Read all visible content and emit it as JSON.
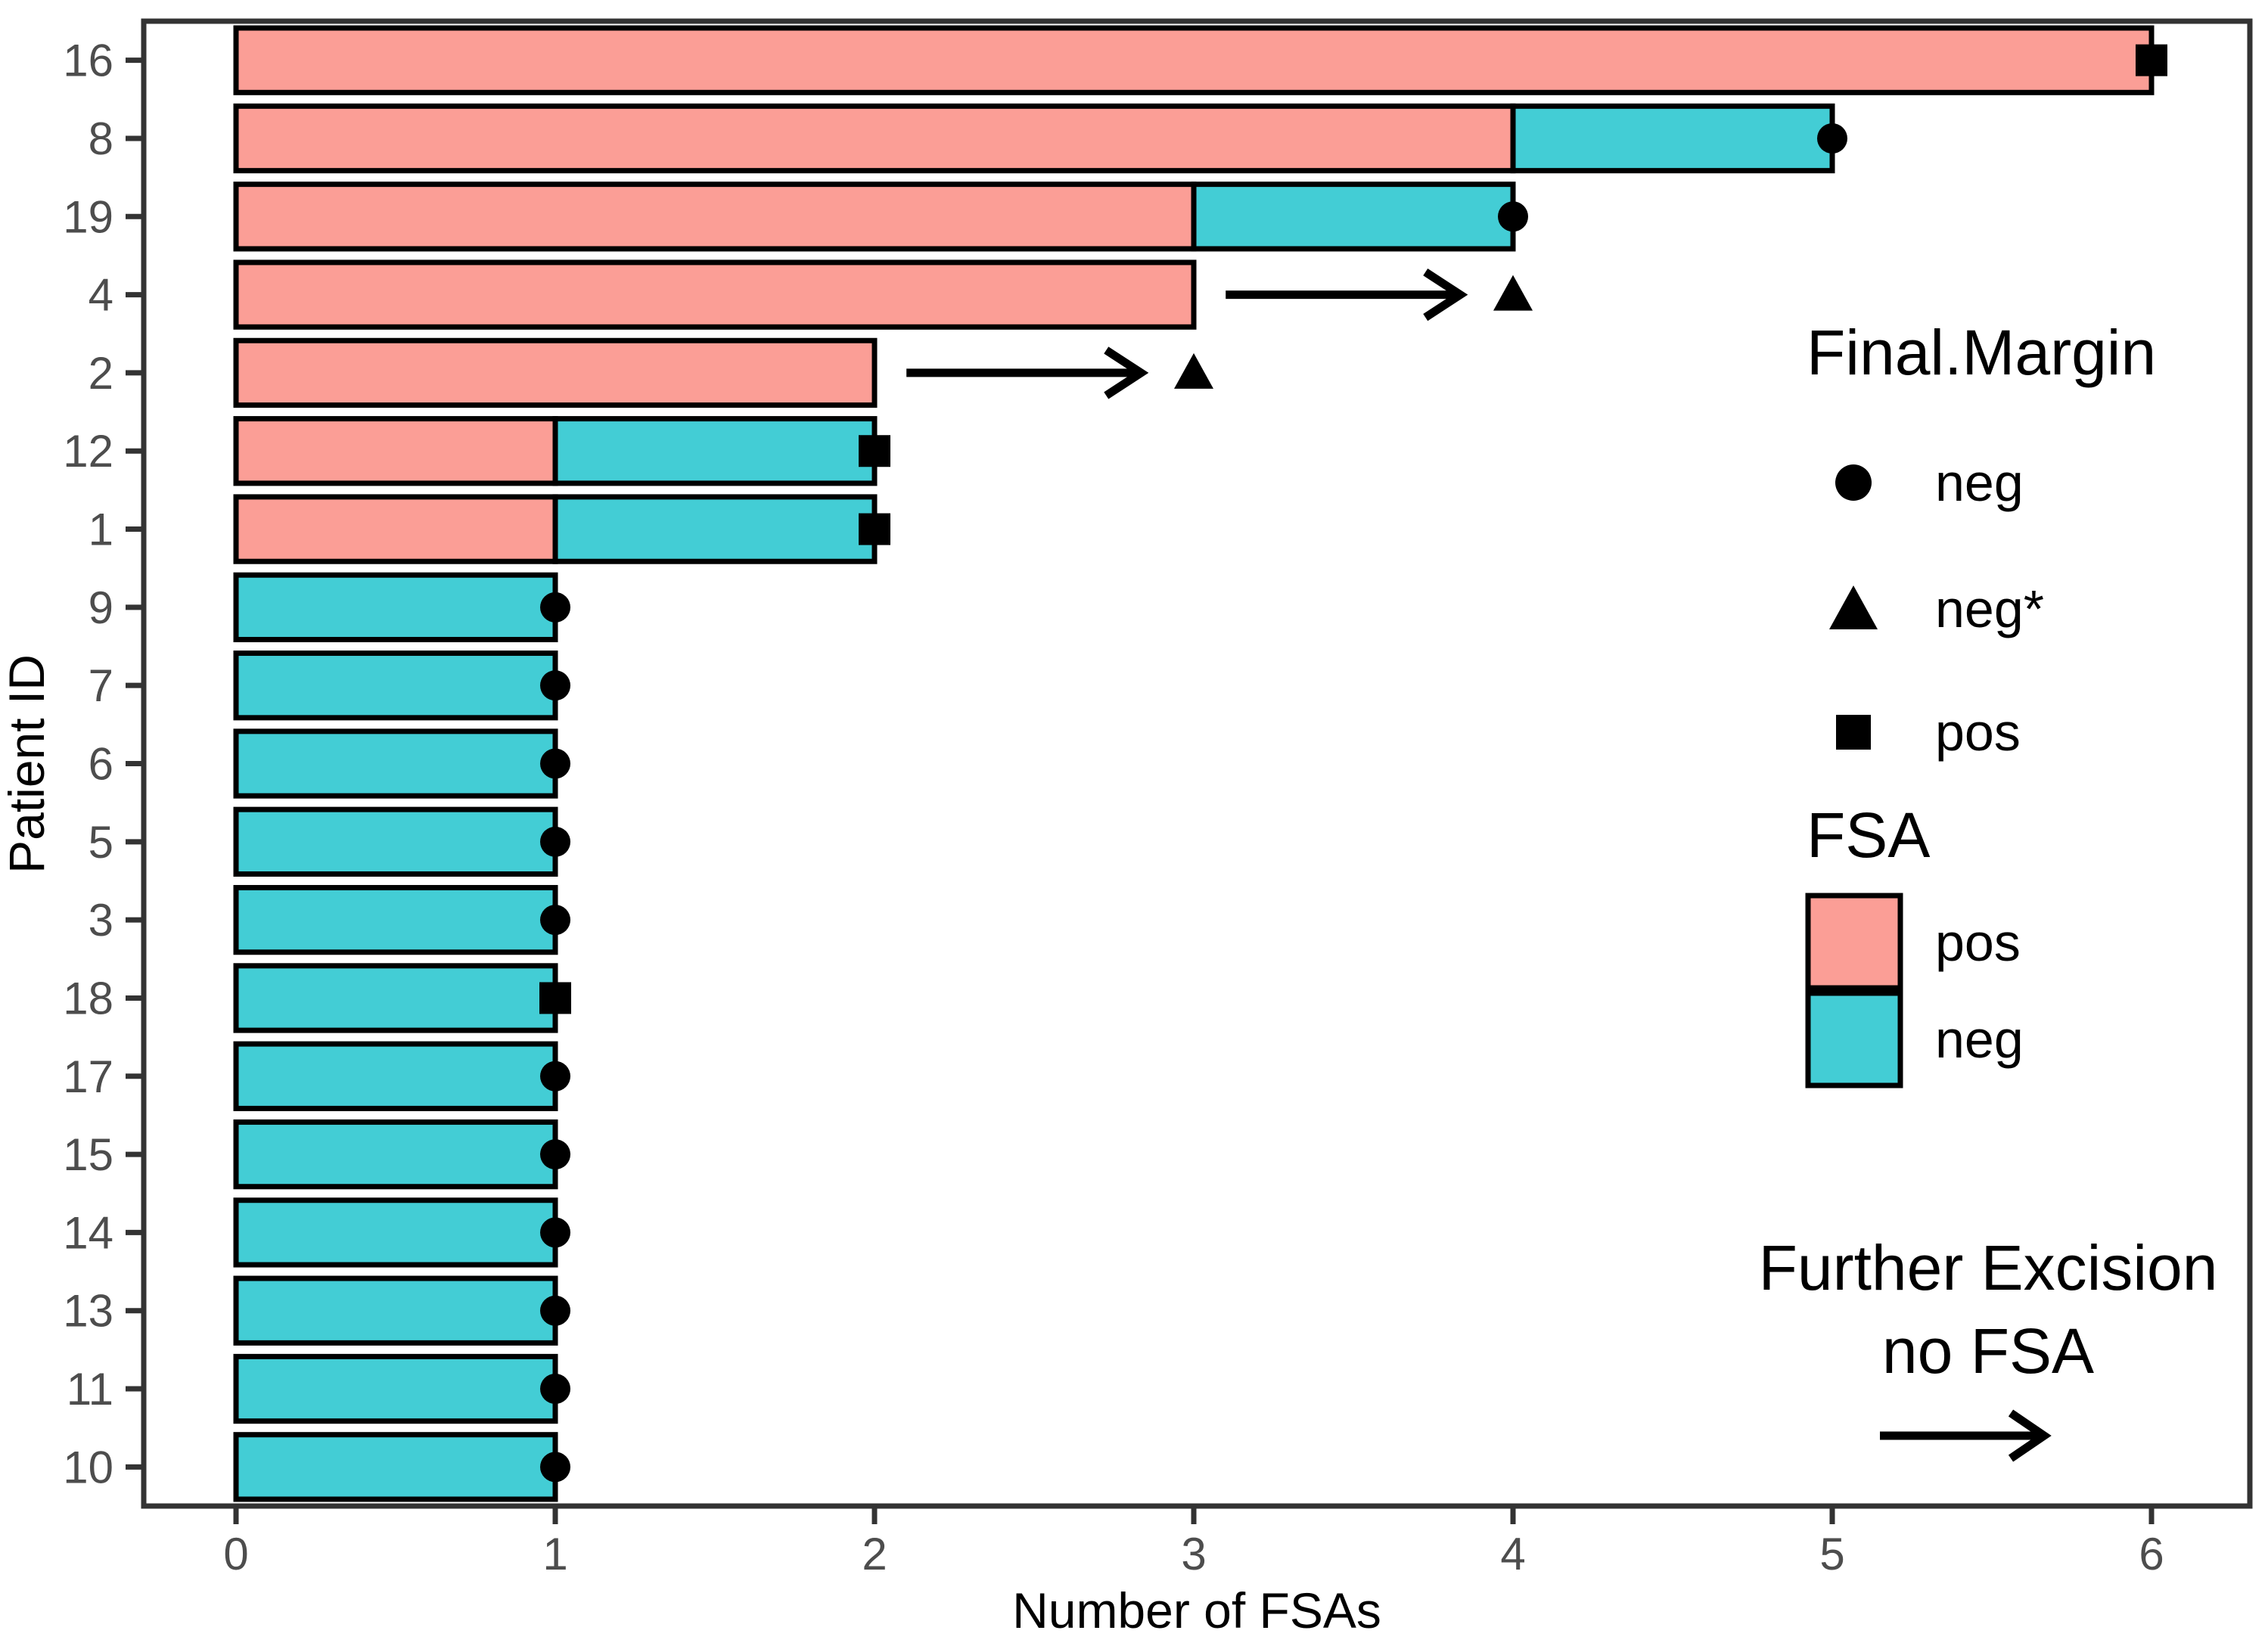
{
  "figure": {
    "xlabel": "Number of FSAs",
    "ylabel": "Patient ID"
  },
  "legend_margin": {
    "title": "Final.Margin",
    "items": [
      {
        "symbol": "circle",
        "label": "neg"
      },
      {
        "symbol": "triangle",
        "label": "neg*"
      },
      {
        "symbol": "square",
        "label": "pos"
      }
    ]
  },
  "legend_fsa": {
    "title": "FSA",
    "items": [
      {
        "color_key": "pos",
        "label": "pos"
      },
      {
        "color_key": "neg",
        "label": "neg"
      }
    ]
  },
  "legend_arrow": {
    "line1": "Further Excision",
    "line2": "no FSA"
  },
  "chart_data": {
    "type": "bar",
    "orientation": "horizontal",
    "stacked": true,
    "title": "",
    "xlabel": "Number of FSAs",
    "ylabel": "Patient ID",
    "xlim": [
      0,
      6
    ],
    "xticks": [
      "0",
      "1",
      "2",
      "3",
      "4",
      "5",
      "6"
    ],
    "grid": false,
    "legend_position": "right-inside",
    "categories": [
      "16",
      "8",
      "19",
      "4",
      "2",
      "12",
      "1",
      "9",
      "7",
      "6",
      "5",
      "3",
      "18",
      "17",
      "15",
      "14",
      "13",
      "11",
      "10"
    ],
    "series": [
      {
        "name": "pos",
        "values": [
          6,
          4,
          3,
          3,
          2,
          1,
          1,
          0,
          0,
          0,
          0,
          0,
          0,
          0,
          0,
          0,
          0,
          0,
          0
        ]
      },
      {
        "name": "neg",
        "values": [
          0,
          1,
          1,
          0,
          0,
          1,
          1,
          1,
          1,
          1,
          1,
          1,
          1,
          1,
          1,
          1,
          1,
          1,
          1
        ]
      }
    ],
    "rows": [
      {
        "id": "16",
        "pos": 6,
        "neg": 0,
        "marker": "square",
        "marker_x": 6,
        "arrow": false
      },
      {
        "id": "8",
        "pos": 4,
        "neg": 1,
        "marker": "circle",
        "marker_x": 5,
        "arrow": false
      },
      {
        "id": "19",
        "pos": 3,
        "neg": 1,
        "marker": "circle",
        "marker_x": 4,
        "arrow": false
      },
      {
        "id": "4",
        "pos": 3,
        "neg": 0,
        "marker": "triangle",
        "marker_x": 4,
        "arrow": true
      },
      {
        "id": "2",
        "pos": 2,
        "neg": 0,
        "marker": "triangle",
        "marker_x": 3,
        "arrow": true
      },
      {
        "id": "12",
        "pos": 1,
        "neg": 1,
        "marker": "square",
        "marker_x": 2,
        "arrow": false
      },
      {
        "id": "1",
        "pos": 1,
        "neg": 1,
        "marker": "square",
        "marker_x": 2,
        "arrow": false
      },
      {
        "id": "9",
        "pos": 0,
        "neg": 1,
        "marker": "circle",
        "marker_x": 1,
        "arrow": false
      },
      {
        "id": "7",
        "pos": 0,
        "neg": 1,
        "marker": "circle",
        "marker_x": 1,
        "arrow": false
      },
      {
        "id": "6",
        "pos": 0,
        "neg": 1,
        "marker": "circle",
        "marker_x": 1,
        "arrow": false
      },
      {
        "id": "5",
        "pos": 0,
        "neg": 1,
        "marker": "circle",
        "marker_x": 1,
        "arrow": false
      },
      {
        "id": "3",
        "pos": 0,
        "neg": 1,
        "marker": "circle",
        "marker_x": 1,
        "arrow": false
      },
      {
        "id": "18",
        "pos": 0,
        "neg": 1,
        "marker": "square",
        "marker_x": 1,
        "arrow": false
      },
      {
        "id": "17",
        "pos": 0,
        "neg": 1,
        "marker": "circle",
        "marker_x": 1,
        "arrow": false
      },
      {
        "id": "15",
        "pos": 0,
        "neg": 1,
        "marker": "circle",
        "marker_x": 1,
        "arrow": false
      },
      {
        "id": "14",
        "pos": 0,
        "neg": 1,
        "marker": "circle",
        "marker_x": 1,
        "arrow": false
      },
      {
        "id": "13",
        "pos": 0,
        "neg": 1,
        "marker": "circle",
        "marker_x": 1,
        "arrow": false
      },
      {
        "id": "11",
        "pos": 0,
        "neg": 1,
        "marker": "circle",
        "marker_x": 1,
        "arrow": false
      },
      {
        "id": "10",
        "pos": 0,
        "neg": 1,
        "marker": "circle",
        "marker_x": 1,
        "arrow": false
      }
    ],
    "colors": {
      "pos": "#FB9E96",
      "neg": "#43CDD5",
      "marker": "#000000",
      "bar_stroke": "#000000",
      "panel_border": "#333333",
      "tick_text": "#4d4d4d",
      "axis_title": "#000000"
    }
  }
}
